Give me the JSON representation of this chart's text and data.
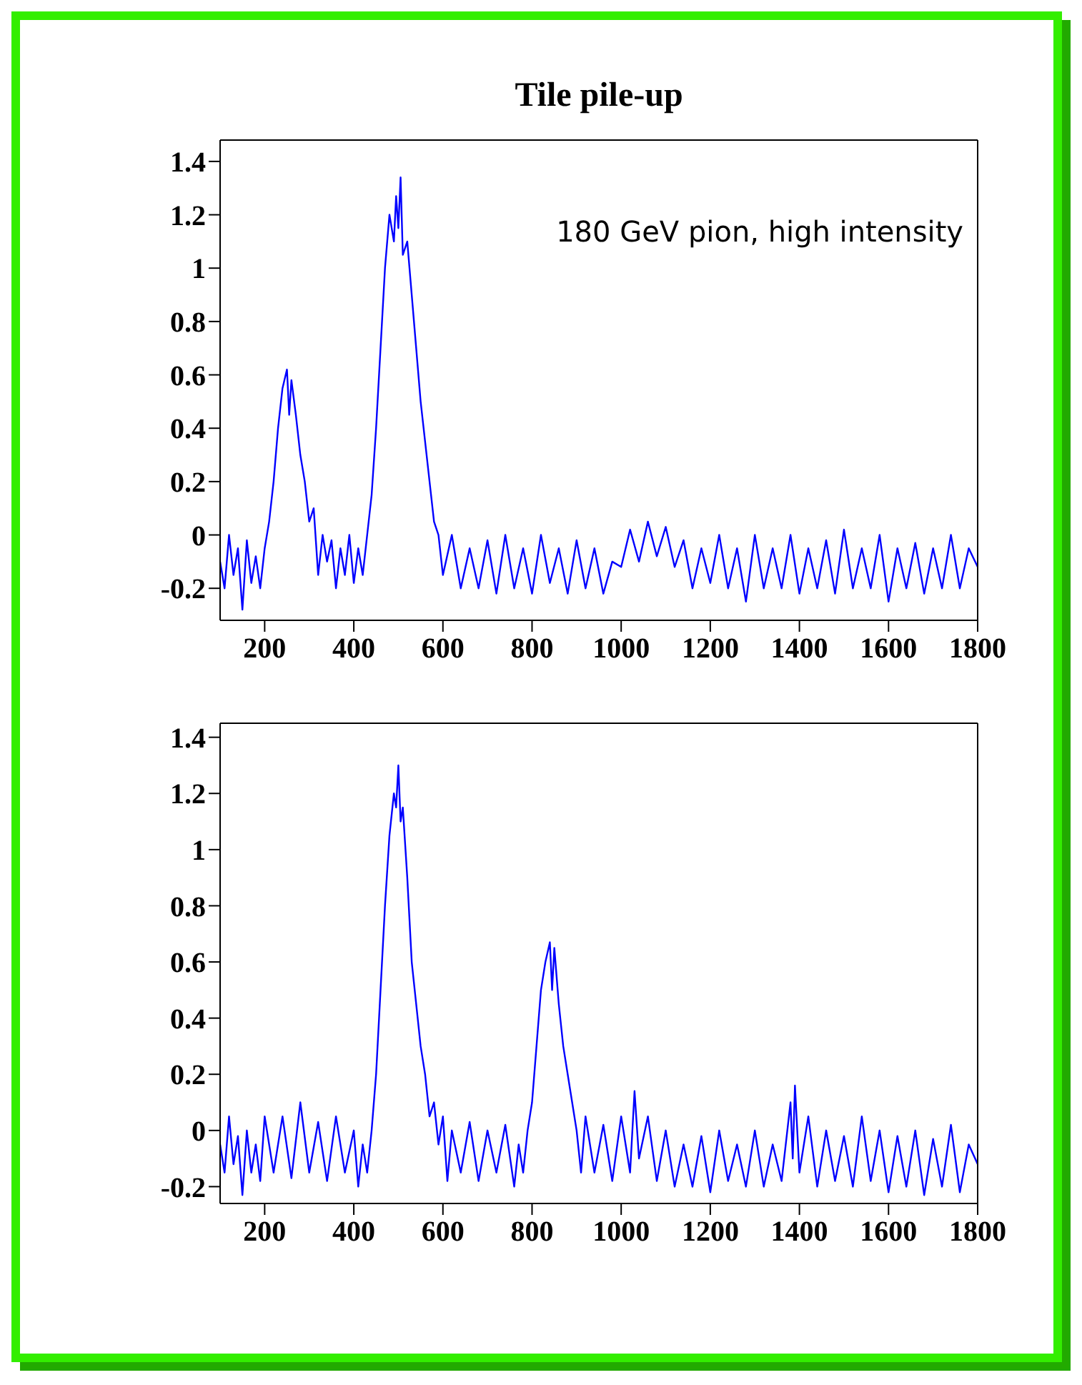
{
  "chart_data": [
    {
      "type": "line",
      "title": "Tile pile-up",
      "annotations": [
        "180 GeV pion, high intensity"
      ],
      "xlim": [
        100,
        1800
      ],
      "xticks": [
        200,
        400,
        600,
        800,
        1000,
        1200,
        1400,
        1600,
        1800
      ],
      "ylim": [
        -0.32,
        1.48
      ],
      "yticks": [
        -0.2,
        0,
        0.2,
        0.4,
        0.6,
        0.8,
        1,
        1.2,
        1.4
      ],
      "marker": "none",
      "series": [
        {
          "color": "#0000ff",
          "x": [
            100,
            110,
            120,
            130,
            140,
            150,
            160,
            170,
            180,
            190,
            200,
            210,
            220,
            230,
            240,
            250,
            255,
            260,
            270,
            280,
            290,
            300,
            310,
            320,
            330,
            340,
            350,
            360,
            370,
            380,
            390,
            400,
            410,
            420,
            430,
            440,
            450,
            460,
            470,
            480,
            490,
            495,
            500,
            505,
            510,
            520,
            530,
            540,
            550,
            560,
            570,
            580,
            590,
            600,
            620,
            640,
            660,
            680,
            700,
            720,
            740,
            760,
            780,
            800,
            820,
            840,
            860,
            880,
            900,
            920,
            940,
            960,
            980,
            1000,
            1020,
            1040,
            1060,
            1080,
            1100,
            1120,
            1140,
            1160,
            1180,
            1200,
            1220,
            1240,
            1260,
            1280,
            1300,
            1320,
            1340,
            1360,
            1380,
            1400,
            1420,
            1440,
            1460,
            1480,
            1500,
            1520,
            1540,
            1560,
            1580,
            1600,
            1620,
            1640,
            1660,
            1680,
            1700,
            1720,
            1740,
            1760,
            1780,
            1800
          ],
          "values": [
            -0.1,
            -0.2,
            0,
            -0.15,
            -0.05,
            -0.28,
            -0.02,
            -0.18,
            -0.08,
            -0.2,
            -0.05,
            0.05,
            0.2,
            0.4,
            0.55,
            0.62,
            0.45,
            0.58,
            0.45,
            0.3,
            0.2,
            0.05,
            0.1,
            -0.15,
            0,
            -0.1,
            -0.02,
            -0.2,
            -0.05,
            -0.15,
            0,
            -0.18,
            -0.05,
            -0.15,
            0,
            0.15,
            0.4,
            0.7,
            1,
            1.2,
            1.1,
            1.27,
            1.15,
            1.34,
            1.05,
            1.1,
            0.9,
            0.7,
            0.5,
            0.35,
            0.2,
            0.05,
            0,
            -0.15,
            0,
            -0.2,
            -0.05,
            -0.2,
            -0.02,
            -0.22,
            0,
            -0.2,
            -0.05,
            -0.22,
            0,
            -0.18,
            -0.05,
            -0.22,
            -0.02,
            -0.2,
            -0.05,
            -0.22,
            -0.1,
            -0.12,
            0.02,
            -0.1,
            0.05,
            -0.08,
            0.03,
            -0.12,
            -0.02,
            -0.2,
            -0.05,
            -0.18,
            0,
            -0.2,
            -0.05,
            -0.25,
            0,
            -0.2,
            -0.05,
            -0.2,
            0,
            -0.22,
            -0.05,
            -0.2,
            -0.02,
            -0.22,
            0.02,
            -0.2,
            -0.05,
            -0.2,
            0,
            -0.25,
            -0.05,
            -0.2,
            -0.03,
            -0.22,
            -0.05,
            -0.2,
            0,
            -0.2,
            -0.05,
            -0.12
          ]
        }
      ]
    },
    {
      "type": "line",
      "xlim": [
        100,
        1800
      ],
      "xticks": [
        200,
        400,
        600,
        800,
        1000,
        1200,
        1400,
        1600,
        1800
      ],
      "ylim": [
        -0.26,
        1.45
      ],
      "yticks": [
        -0.2,
        0,
        0.2,
        0.4,
        0.6,
        0.8,
        1,
        1.2,
        1.4
      ],
      "marker": "none",
      "series": [
        {
          "color": "#0000ff",
          "x": [
            100,
            110,
            120,
            130,
            140,
            150,
            160,
            170,
            180,
            190,
            200,
            220,
            240,
            260,
            280,
            300,
            320,
            340,
            360,
            380,
            400,
            410,
            420,
            430,
            440,
            450,
            460,
            470,
            480,
            490,
            495,
            500,
            505,
            510,
            520,
            530,
            540,
            550,
            560,
            570,
            580,
            590,
            600,
            610,
            620,
            640,
            660,
            680,
            700,
            720,
            740,
            760,
            770,
            780,
            790,
            800,
            810,
            820,
            830,
            840,
            845,
            850,
            860,
            870,
            880,
            890,
            900,
            910,
            920,
            940,
            960,
            980,
            1000,
            1020,
            1030,
            1040,
            1060,
            1080,
            1100,
            1120,
            1140,
            1160,
            1180,
            1200,
            1220,
            1240,
            1260,
            1280,
            1300,
            1320,
            1340,
            1360,
            1380,
            1385,
            1390,
            1400,
            1420,
            1440,
            1460,
            1480,
            1500,
            1520,
            1540,
            1560,
            1580,
            1600,
            1620,
            1640,
            1660,
            1680,
            1700,
            1720,
            1740,
            1760,
            1780,
            1800
          ],
          "values": [
            -0.05,
            -0.15,
            0.05,
            -0.12,
            -0.02,
            -0.23,
            0,
            -0.15,
            -0.05,
            -0.18,
            0.05,
            -0.15,
            0.05,
            -0.17,
            0.1,
            -0.15,
            0.03,
            -0.18,
            0.05,
            -0.15,
            0,
            -0.2,
            -0.05,
            -0.15,
            0,
            0.2,
            0.5,
            0.8,
            1.05,
            1.2,
            1.15,
            1.3,
            1.1,
            1.15,
            0.9,
            0.6,
            0.45,
            0.3,
            0.2,
            0.05,
            0.1,
            -0.05,
            0.05,
            -0.18,
            0,
            -0.15,
            0.03,
            -0.18,
            0,
            -0.15,
            0.02,
            -0.2,
            -0.05,
            -0.15,
            0,
            0.1,
            0.3,
            0.5,
            0.6,
            0.67,
            0.5,
            0.65,
            0.45,
            0.3,
            0.2,
            0.1,
            0,
            -0.15,
            0.05,
            -0.15,
            0.02,
            -0.18,
            0.05,
            -0.15,
            0.14,
            -0.1,
            0.05,
            -0.18,
            0,
            -0.2,
            -0.05,
            -0.2,
            -0.02,
            -0.22,
            0,
            -0.18,
            -0.05,
            -0.2,
            0,
            -0.2,
            -0.05,
            -0.18,
            0.1,
            -0.1,
            0.16,
            -0.15,
            0.05,
            -0.2,
            0,
            -0.18,
            -0.02,
            -0.2,
            0.05,
            -0.18,
            0,
            -0.22,
            -0.02,
            -0.2,
            0,
            -0.23,
            -0.03,
            -0.2,
            0.02,
            -0.22,
            -0.05,
            -0.12
          ]
        }
      ]
    }
  ]
}
